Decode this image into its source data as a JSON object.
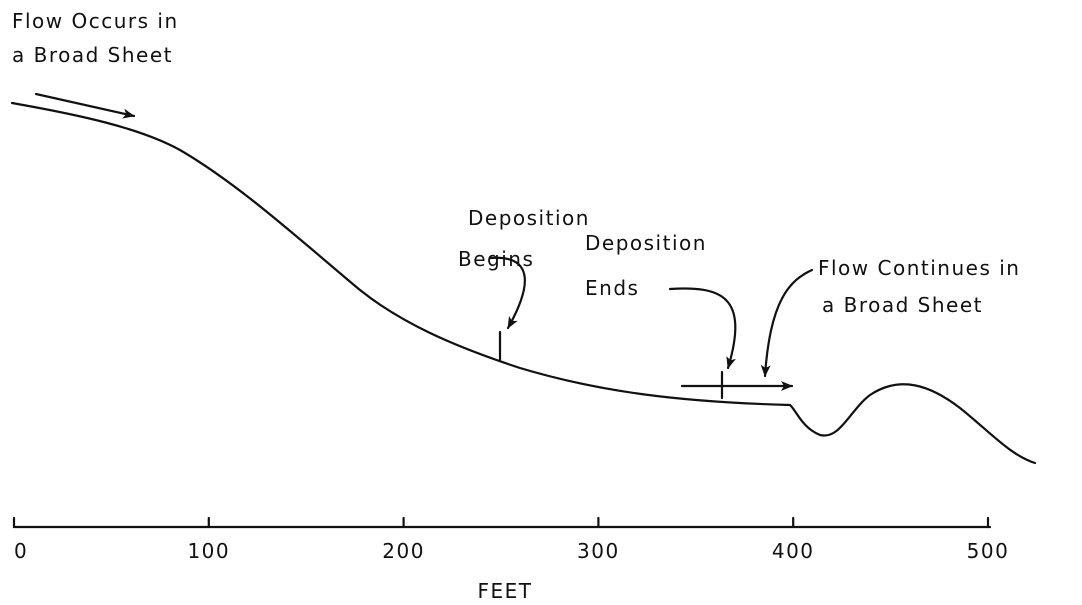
{
  "labels": {
    "flow_start": [
      "Flow Occurs in",
      "a Broad Sheet"
    ],
    "deposition_begins": [
      "Deposition",
      "Begins"
    ],
    "deposition_ends": [
      "Deposition",
      "Ends"
    ],
    "flow_continues": [
      "Flow Continues in",
      "a Broad Sheet"
    ]
  },
  "scale": {
    "ticks": [
      0,
      100,
      200,
      300,
      400,
      500
    ],
    "label": "FEET"
  }
}
